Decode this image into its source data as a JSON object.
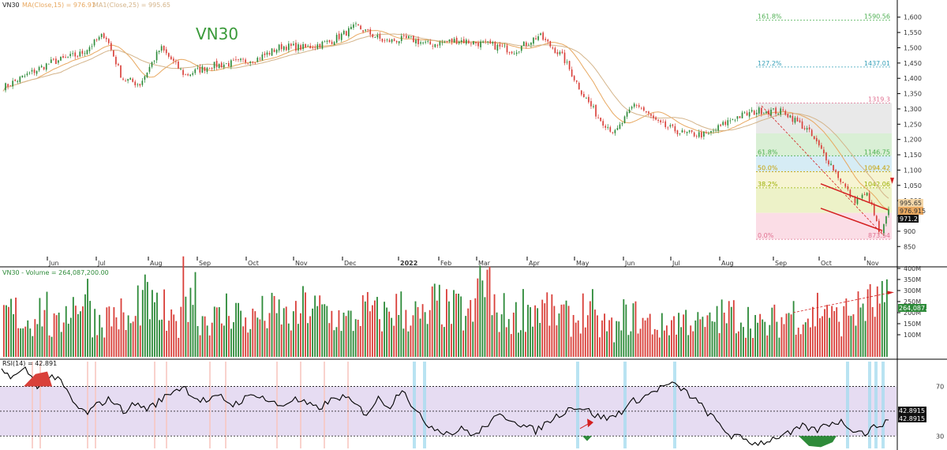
{
  "header": {
    "price_title": "VN30",
    "price_ma15": "MA(Close,15) = 976.91",
    "price_ma25": "MA1(Close,25) = 995.65",
    "watermark": "VN30",
    "volume_title": "VN30 - Volume = 264,087,200.00",
    "rsi_title": "RSI(14) = 42.891"
  },
  "colors": {
    "up": "#2e8b3a",
    "down": "#d9403a",
    "ma15": "#e8a860",
    "ma25": "#d4b48a",
    "watermark": "#3a9a3a",
    "rsi_band": "#e6dcf2",
    "rsi_highlight_red": "#f7c7c0",
    "rsi_highlight_blue": "#a8dcef",
    "annotation_red": "#d42020"
  },
  "badges": {
    "ma25": "995.65",
    "ma15": "976.915",
    "close": "971.2",
    "volume": "264,087.2",
    "rsi_a": "42.8915",
    "rsi_b": "42.8915"
  },
  "chart_data": [
    {
      "type": "candlestick",
      "title": "VN30",
      "xlabel": "",
      "ylabel": "",
      "x_ticks": [
        "Jun",
        "Jul",
        "Aug",
        "Sep",
        "Oct",
        "Nov",
        "Dec",
        "2022",
        "Feb",
        "Mar",
        "Apr",
        "May",
        "Jun",
        "Jul",
        "Aug",
        "Sep",
        "Oct",
        "Nov"
      ],
      "ylim": [
        830,
        1620
      ],
      "y_ticks": [
        850,
        900,
        950,
        1000,
        1050,
        1100,
        1150,
        1200,
        1250,
        1300,
        1350,
        1400,
        1450,
        1500,
        1550,
        1600
      ],
      "grid": false,
      "close_path": [
        [
          "Jun",
          1370
        ],
        [
          "Jun",
          1450
        ],
        [
          "Jun",
          1480
        ],
        [
          "Jul",
          1545
        ],
        [
          "Jul",
          1400
        ],
        [
          "Jul",
          1380
        ],
        [
          "Aug",
          1500
        ],
        [
          "Aug",
          1410
        ],
        [
          "Sep",
          1440
        ],
        [
          "Sep",
          1450
        ],
        [
          "Oct",
          1465
        ],
        [
          "Oct",
          1505
        ],
        [
          "Nov",
          1500
        ],
        [
          "Nov",
          1520
        ],
        [
          "Dec",
          1570
        ],
        [
          "Dec",
          1520
        ],
        [
          "2022",
          1530
        ],
        [
          "2022",
          1510
        ],
        [
          "Feb",
          1525
        ],
        [
          "Mar",
          1510
        ],
        [
          "Mar",
          1490
        ],
        [
          "Apr",
          1540
        ],
        [
          "Apr",
          1470
        ],
        [
          "May",
          1350
        ],
        [
          "May",
          1270
        ],
        [
          "May",
          1220
        ],
        [
          "Jun",
          1320
        ],
        [
          "Jun",
          1250
        ],
        [
          "Jul",
          1220
        ],
        [
          "Jul",
          1215
        ],
        [
          "Aug",
          1270
        ],
        [
          "Aug",
          1295
        ],
        [
          "Sep",
          1290
        ],
        [
          "Sep",
          1230
        ],
        [
          "Oct",
          1120
        ],
        [
          "Oct",
          1000
        ],
        [
          "Nov",
          1020
        ],
        [
          "Nov",
          950
        ],
        [
          "Nov",
          880
        ],
        [
          "Nov",
          971.2
        ]
      ],
      "series": [
        {
          "name": "MA(Close,15)",
          "last": 976.91
        },
        {
          "name": "MA1(Close,25)",
          "last": 995.65
        }
      ],
      "last_close": 971.2,
      "fibonacci": [
        {
          "label": "161.8%",
          "value": 1590.56
        },
        {
          "label": "127.2%",
          "value": 1437.01
        },
        {
          "label": "",
          "value": 1319.3
        },
        {
          "label": "61.8%",
          "value": 1146.75
        },
        {
          "label": "50.0%",
          "value": 1094.42
        },
        {
          "label": "38.2%",
          "value": 1042.06
        },
        {
          "label": "0.0%",
          "value": 873.54
        }
      ],
      "fibonacci_value_text": [
        "1590.56",
        "1437.01",
        "1319.3",
        "1146.75",
        "1094.42",
        "1042.06",
        "873.54"
      ]
    },
    {
      "type": "bar",
      "title": "Volume",
      "ylim": [
        0,
        400
      ],
      "y_ticks": [
        "400M",
        "350M",
        "300M",
        "250M",
        "200M",
        "150M",
        "100M"
      ],
      "values_millions": [
        220,
        180,
        240,
        150,
        260,
        300,
        190,
        210,
        170,
        280,
        230,
        160,
        350,
        200,
        190,
        240,
        180,
        210,
        220,
        190,
        250,
        230,
        200,
        180,
        230,
        210,
        240,
        220,
        190,
        260,
        230,
        210,
        380,
        220,
        200,
        250,
        240,
        210,
        190,
        230,
        160,
        140,
        200,
        170,
        150,
        180,
        190,
        160,
        200,
        210,
        190,
        150,
        180,
        220,
        200,
        250,
        190,
        230,
        260,
        264.1
      ],
      "last": 264.0872
    },
    {
      "type": "line",
      "title": "RSI(14)",
      "ylim": [
        20,
        90
      ],
      "y_ticks": [
        70,
        30
      ],
      "levels": [
        70,
        50,
        30
      ],
      "values": [
        82,
        78,
        84,
        70,
        80,
        72,
        55,
        48,
        56,
        60,
        50,
        56,
        52,
        58,
        66,
        70,
        60,
        58,
        62,
        55,
        60,
        64,
        58,
        54,
        60,
        56,
        52,
        58,
        62,
        56,
        48,
        60,
        54,
        70,
        50,
        40,
        35,
        32,
        36,
        30,
        40,
        46,
        44,
        38,
        34,
        42,
        48,
        54,
        52,
        46,
        44,
        50,
        58,
        62,
        68,
        72,
        68,
        60,
        50,
        40,
        30,
        28,
        24,
        26,
        30,
        32,
        38,
        34,
        40,
        42,
        36,
        32,
        38,
        42.891
      ],
      "last": 42.891
    }
  ]
}
